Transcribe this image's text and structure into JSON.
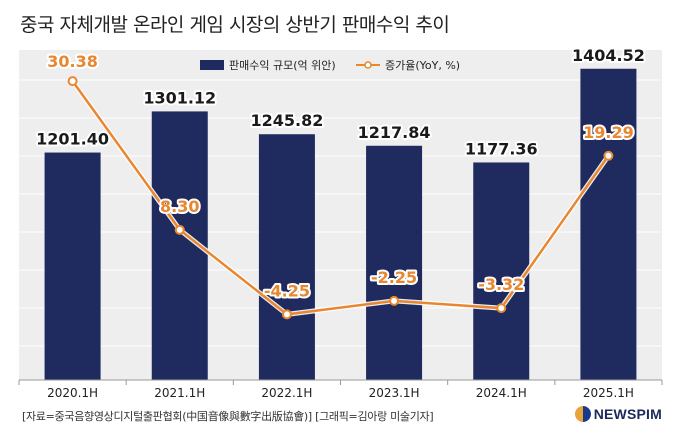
{
  "title": "중국 자체개발 온라인 게임 시장의 상반기 판매수익 추이",
  "source": "[자료=중국음향영상디지털출판협회(中国音像與數字出版協會)] [그래픽=김아랑 미술기자]",
  "logo": "NEWSPIM",
  "colors": {
    "bar": "#1f2a5e",
    "line": "#e8872f",
    "plot_bg": "#eeeeee"
  },
  "chart_data": {
    "type": "bar",
    "categories": [
      "2020.1H",
      "2021.1H",
      "2022.1H",
      "2023.1H",
      "2024.1H",
      "2025.1H"
    ],
    "series": [
      {
        "name": "판매수익 규모(억 위안)",
        "type": "bar",
        "values": [
          1201.4,
          1301.12,
          1245.82,
          1217.84,
          1177.36,
          1404.52
        ]
      },
      {
        "name": "증가율(YoY, %)",
        "type": "line",
        "values": [
          30.38,
          8.3,
          -4.25,
          -2.25,
          -3.32,
          19.29
        ]
      }
    ],
    "bar_labels": [
      "1201.40",
      "1301.12",
      "1245.82",
      "1217.84",
      "1177.36",
      "1404.52"
    ],
    "line_labels": [
      "30.38",
      "8.30",
      "-4.25",
      "-2.25",
      "-3.32",
      "19.29"
    ],
    "legend_position": "top-center",
    "grid": true
  }
}
